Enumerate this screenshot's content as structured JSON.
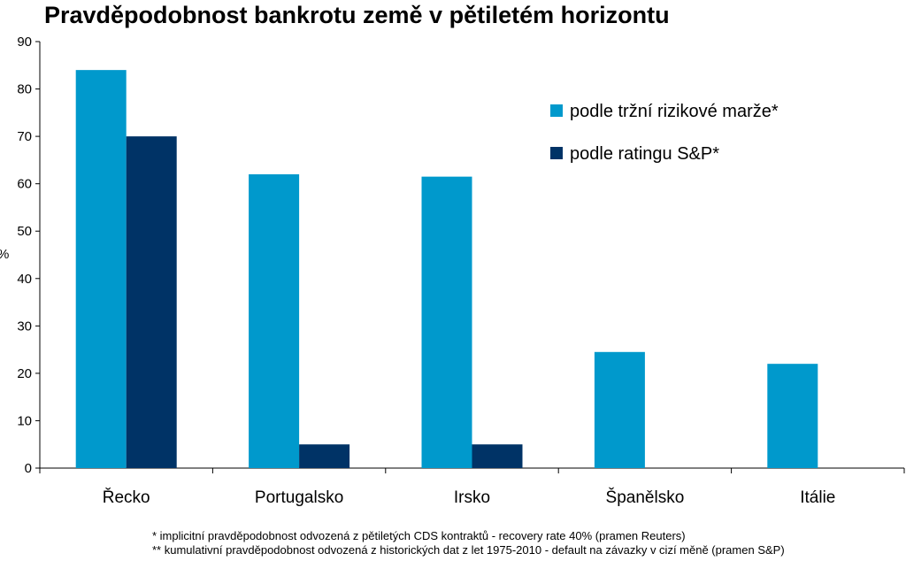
{
  "chart_data": {
    "type": "bar",
    "title": "Pravděpodobnost bankrotu země v pětiletém horizontu",
    "ylabel": "%",
    "xlabel": "",
    "ylim": [
      0,
      90
    ],
    "yticks": [
      0,
      10,
      20,
      30,
      40,
      50,
      60,
      70,
      80,
      90
    ],
    "grid": false,
    "legend_position": "top-right",
    "categories": [
      "Řecko",
      "Portugalsko",
      "Irsko",
      "Španělsko",
      "Itálie"
    ],
    "series": [
      {
        "name": "podle tržní rizikové marže*",
        "color": "#0099CC",
        "values": [
          84,
          62,
          61.5,
          24.5,
          22
        ]
      },
      {
        "name": "podle ratingu S&P*",
        "color": "#003366",
        "values": [
          70,
          5,
          5,
          null,
          null
        ]
      }
    ]
  },
  "footnotes": [
    "* implicitní pravděpodobnost odvozená z pětiletých CDS kontraktů - recovery rate 40% (pramen Reuters)",
    "** kumulativní pravděpodobnost odvozená z historických dat z let 1975-2010  - default na závazky v cizí měně (pramen S&P)"
  ]
}
